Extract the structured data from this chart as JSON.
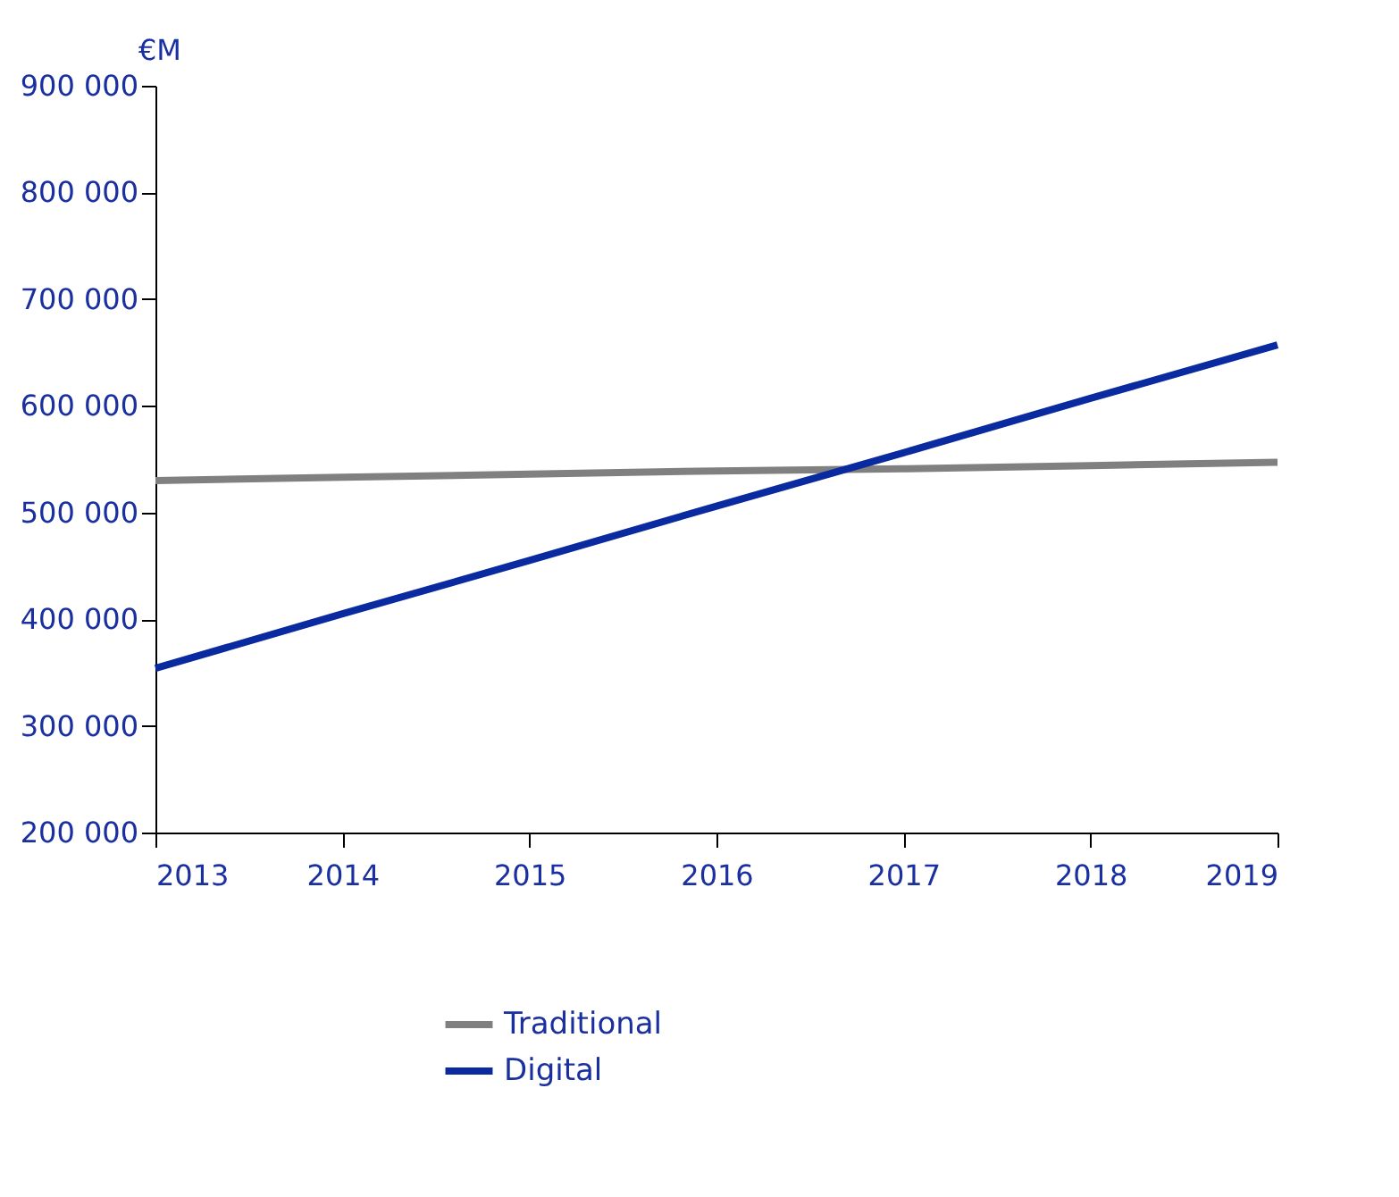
{
  "chart_data": {
    "type": "line",
    "ylabel": "€M",
    "x": [
      2013,
      2014,
      2015,
      2016,
      2017,
      2018,
      2019
    ],
    "series": [
      {
        "name": "Traditional",
        "color": "#808080",
        "values": [
          530000,
          533000,
          536000,
          539000,
          541000,
          544000,
          547000
        ]
      },
      {
        "name": "Digital",
        "color": "#0a2a9f",
        "values": [
          354000,
          405000,
          455000,
          506000,
          556000,
          607000,
          657000
        ]
      }
    ],
    "xlim": [
      2013,
      2019
    ],
    "xticks": [
      2013,
      2014,
      2015,
      2016,
      2017,
      2018,
      2019
    ],
    "ylim": [
      200000,
      900000
    ],
    "yticks": [
      {
        "value": 200000,
        "label": "200 000"
      },
      {
        "value": 300000,
        "label": "300 000"
      },
      {
        "value": 400000,
        "label": "400 000"
      },
      {
        "value": 500000,
        "label": "500 000"
      },
      {
        "value": 600000,
        "label": "600 000"
      },
      {
        "value": 700000,
        "label": "700 000"
      },
      {
        "value": 800000,
        "label": "800 000"
      },
      {
        "value": 900000,
        "label": "900 000"
      }
    ],
    "grid": false,
    "legend": "bottom",
    "marker": "none",
    "line_style": "solid"
  }
}
